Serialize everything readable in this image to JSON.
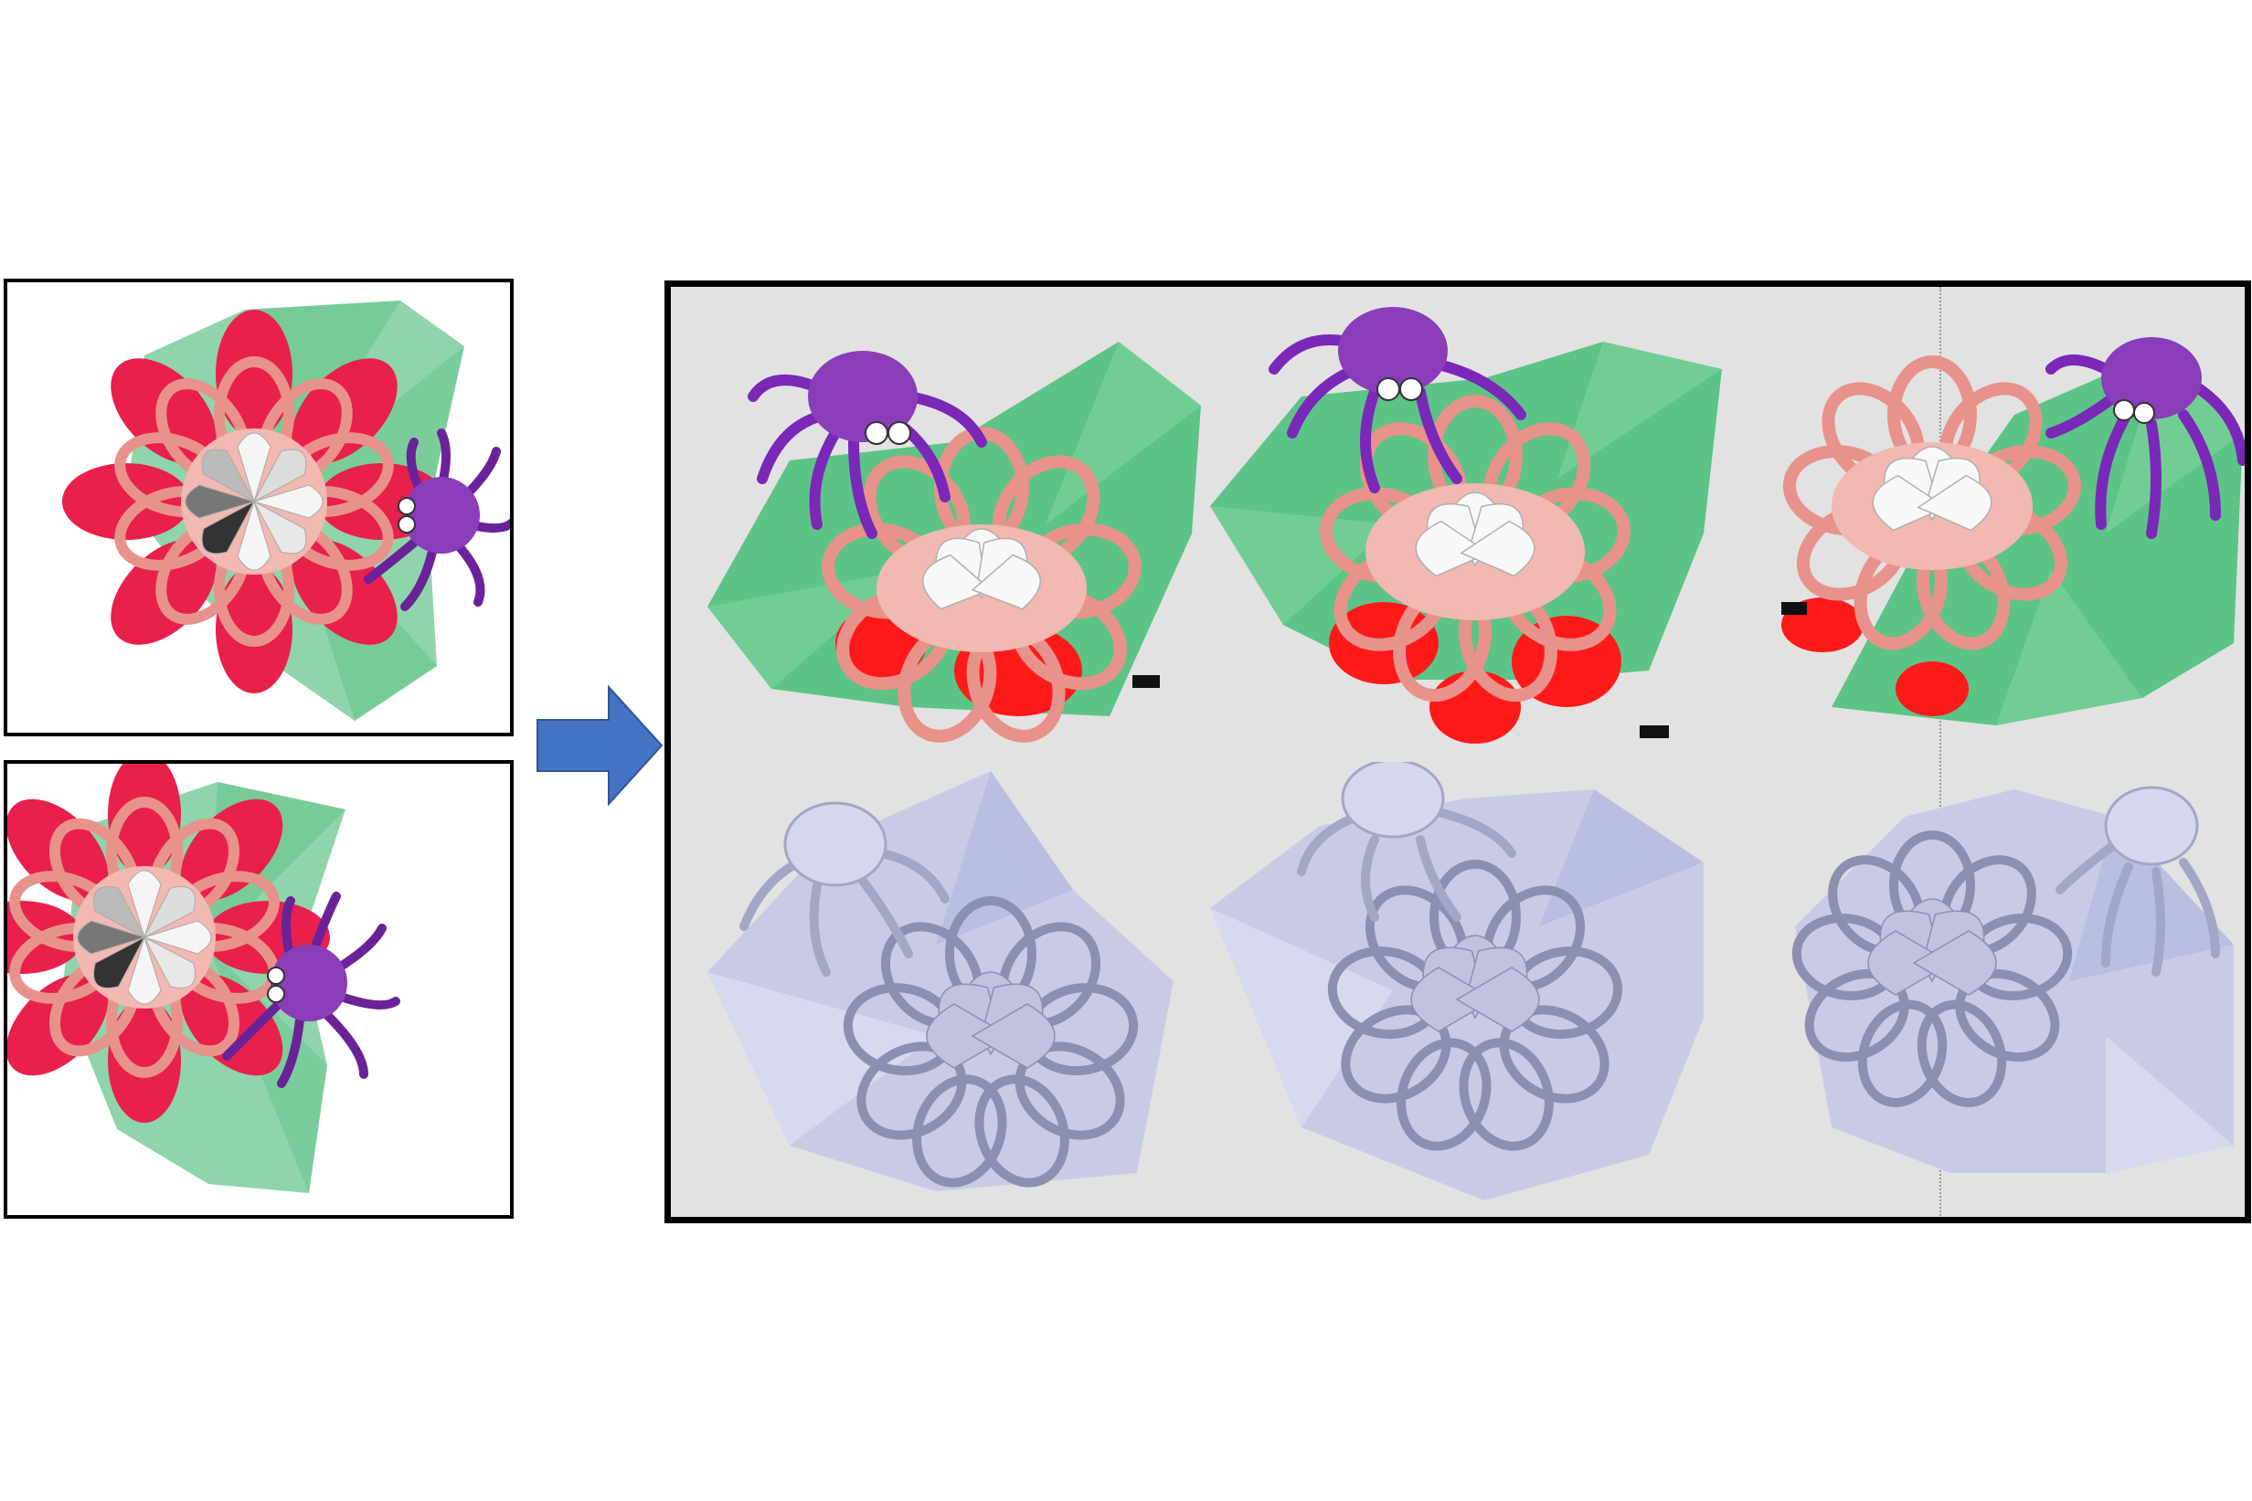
{
  "colors": {
    "leaf": "#67c48c",
    "leaf_light": "#8fd4aa",
    "red_petal": "#e8204b",
    "bright_red": "#ff1a1a",
    "pink_petal": "#e8928c",
    "pink_light": "#f2b8b2",
    "white_petal": "#f5f5f5",
    "spider": "#8a3db8",
    "spider_dark": "#6a2298",
    "panel_bg": "#e2e2e2",
    "mesh": "#c9cbe6",
    "arrow": "#4472c4"
  },
  "input_views": [
    {
      "name": "input-view-1"
    },
    {
      "name": "input-view-2"
    }
  ],
  "results": {
    "rows": [
      "colored-reconstruction",
      "geometry-reconstruction"
    ],
    "views": 3
  }
}
